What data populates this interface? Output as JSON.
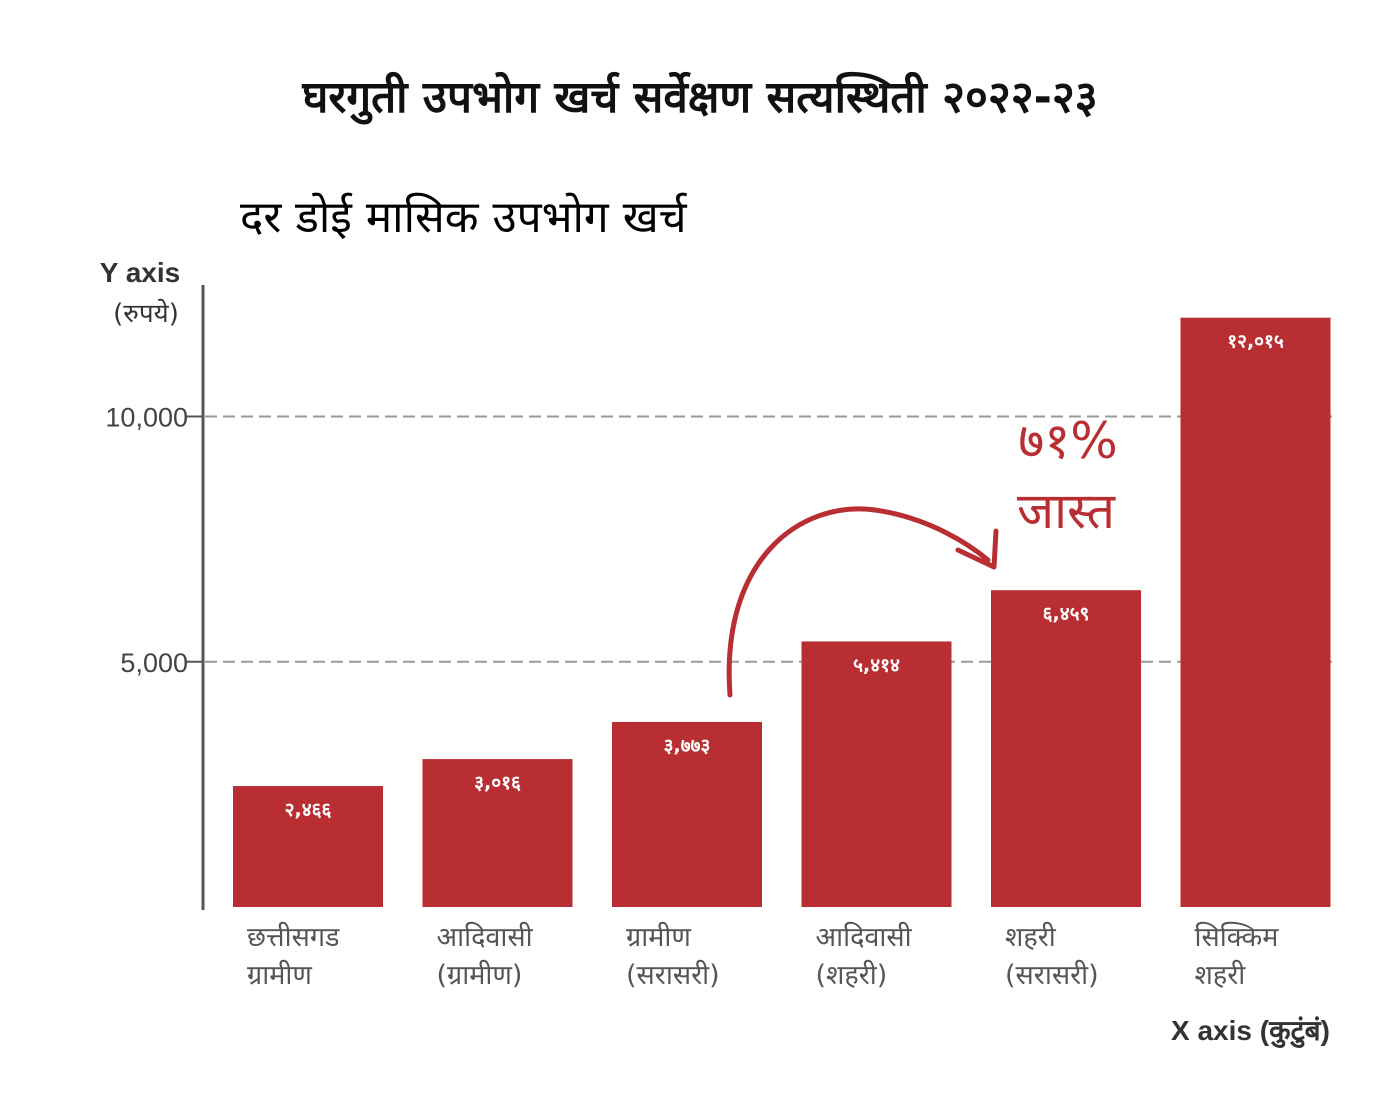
{
  "chart_data": {
    "type": "bar",
    "title": "घरगुती उपभोग खर्च सर्वेक्षण सत्यस्थिती २०२२-२३",
    "subtitle": "दर डोई मासिक उपभोग खर्च",
    "ylabel": "Y axis",
    "ylabel_unit": "(रुपये)",
    "xlabel": "X axis (कुटुंबं)",
    "ylim": [
      0,
      12600
    ],
    "yticks": [
      5000,
      10000
    ],
    "ytick_labels": [
      "5,000",
      "10,000"
    ],
    "grid": "horizontal dashed at ticks",
    "categories": [
      [
        "छत्तीसगड",
        "ग्रामीण"
      ],
      [
        "आदिवासी",
        "(ग्रामीण)"
      ],
      [
        "ग्रामीण",
        "(सरासरी)"
      ],
      [
        "आदिवासी",
        "(शहरी)"
      ],
      [
        "शहरी",
        "(सरासरी)"
      ],
      [
        "सिक्किम",
        "शहरी"
      ]
    ],
    "values": [
      2466,
      3016,
      3773,
      5414,
      6459,
      12015
    ],
    "value_labels": [
      "२,४६६",
      "३,०१६",
      "३,७७३",
      "५,४१४",
      "६,४५९",
      "१२,०१५"
    ],
    "annotation": {
      "lines": [
        "७१%",
        "जास्त"
      ],
      "from_category_index": 2,
      "to_category_index": 4
    }
  },
  "colors": {
    "bar": "#b82e32",
    "accent_text": "#b82e32",
    "title": "#111111",
    "grid": "#9a9a9a",
    "axis": "#555555"
  }
}
